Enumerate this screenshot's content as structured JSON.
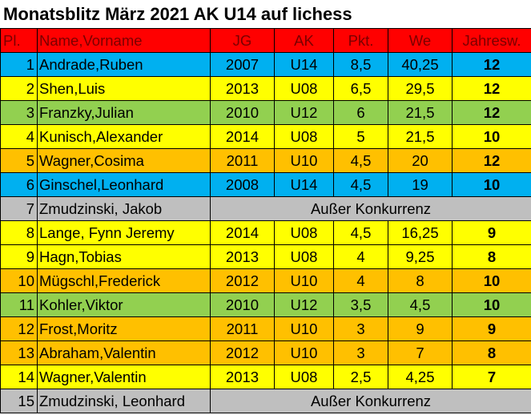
{
  "title": "Monatsblitz März 2021 AK U14 auf lichess",
  "headers": {
    "pl": "Pl.",
    "name": "Name,Vorname",
    "jg": "JG",
    "ak": "AK",
    "pkt": "Pkt.",
    "we": "We",
    "jahresw": "Jahresw."
  },
  "colors": {
    "blue": "#00b0f0",
    "yellow": "#ffff00",
    "green": "#92d050",
    "orange": "#ffc000",
    "gray": "#bfbfbf",
    "header": "#ff0000",
    "header_text": "#7a0000"
  },
  "rows": [
    {
      "pl": "1",
      "name": "Andrade,Ruben",
      "jg": "2007",
      "ak": "U14",
      "pkt": "8,5",
      "we": "40,25",
      "jw": "12",
      "color": "blue"
    },
    {
      "pl": "2",
      "name": "Shen,Luis",
      "jg": "2013",
      "ak": "U08",
      "pkt": "6,5",
      "we": "29,5",
      "jw": "12",
      "color": "yellow"
    },
    {
      "pl": "3",
      "name": "Franzky,Julian",
      "jg": "2010",
      "ak": "U12",
      "pkt": "6",
      "we": "21,5",
      "jw": "12",
      "color": "green"
    },
    {
      "pl": "4",
      "name": "Kunisch,Alexander",
      "jg": "2014",
      "ak": "U08",
      "pkt": "5",
      "we": "21,5",
      "jw": "10",
      "color": "yellow"
    },
    {
      "pl": "5",
      "name": "Wagner,Cosima",
      "jg": "2011",
      "ak": "U10",
      "pkt": "4,5",
      "we": "20",
      "jw": "12",
      "color": "orange"
    },
    {
      "pl": "6",
      "name": "Ginschel,Leonhard",
      "jg": "2008",
      "ak": "U14",
      "pkt": "4,5",
      "we": "19",
      "jw": "10",
      "color": "blue"
    },
    {
      "pl": "7",
      "name": "Zmudzinski, Jakob",
      "ausser": "Außer Konkurrenz",
      "color": "gray"
    },
    {
      "pl": "8",
      "name": "Lange, Fynn Jeremy",
      "jg": "2014",
      "ak": "U08",
      "pkt": "4,5",
      "we": "16,25",
      "jw": "9",
      "color": "yellow"
    },
    {
      "pl": "9",
      "name": "Hagn,Tobias",
      "jg": "2013",
      "ak": "U08",
      "pkt": "4",
      "we": "9,25",
      "jw": "8",
      "color": "yellow"
    },
    {
      "pl": "10",
      "name": "Mügschl,Frederick",
      "jg": "2012",
      "ak": "U10",
      "pkt": "4",
      "we": "8",
      "jw": "10",
      "color": "orange"
    },
    {
      "pl": "11",
      "name": "Kohler,Viktor",
      "jg": "2010",
      "ak": "U12",
      "pkt": "3,5",
      "we": "4,5",
      "jw": "10",
      "color": "green"
    },
    {
      "pl": "12",
      "name": "Frost,Moritz",
      "jg": "2011",
      "ak": "U10",
      "pkt": "3",
      "we": "9",
      "jw": "9",
      "color": "orange"
    },
    {
      "pl": "13",
      "name": "Abraham,Valentin",
      "jg": "2012",
      "ak": "U10",
      "pkt": "3",
      "we": "7",
      "jw": "8",
      "color": "orange"
    },
    {
      "pl": "14",
      "name": "Wagner,Valentin",
      "jg": "2013",
      "ak": "U08",
      "pkt": "2,5",
      "we": "4,25",
      "jw": "7",
      "color": "yellow"
    },
    {
      "pl": "15",
      "name": "Zmudzinski, Leonhard",
      "ausser": "Außer Konkurrenz",
      "color": "gray"
    }
  ]
}
